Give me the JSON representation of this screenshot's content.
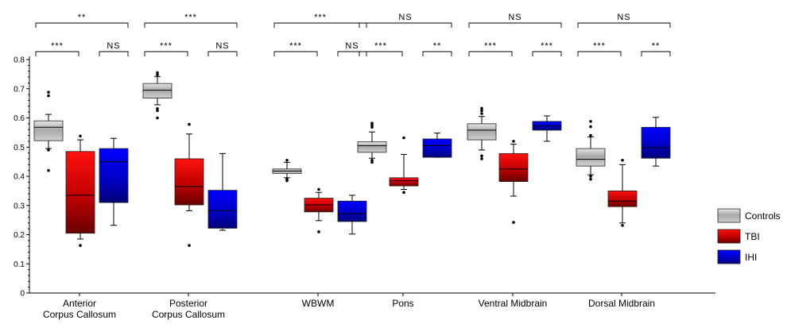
{
  "chart_data": {
    "type": "box",
    "title": "",
    "xlabel": "",
    "ylabel": "",
    "ylim": [
      0,
      0.8
    ],
    "yticks": [
      "0",
      "0.1",
      "0.2",
      "0.3",
      "0.4",
      "0.5",
      "0.6",
      "0.7",
      "0.8"
    ],
    "legend_position": "right",
    "grid": false,
    "categories": [
      [
        "Anterior",
        "Corpus Callosum"
      ],
      [
        "Posterior",
        "Corpus Callosum"
      ],
      [
        "WBWM"
      ],
      [
        "Pons"
      ],
      [
        "Ventral Midbrain"
      ],
      [
        "Dorsal Midbrain"
      ]
    ],
    "series": [
      {
        "name": "Controls",
        "color": "#b8b8b8",
        "boxes": [
          {
            "whisker_low": 0.495,
            "q1": 0.522,
            "median": 0.568,
            "q3": 0.59,
            "whisker_high": 0.612,
            "outliers": [
              0.42,
              0.49,
              0.676,
              0.688
            ]
          },
          {
            "whisker_low": 0.645,
            "q1": 0.668,
            "median": 0.695,
            "q3": 0.718,
            "whisker_high": 0.742,
            "outliers": [
              0.6,
              0.625,
              0.632,
              0.748,
              0.755
            ]
          },
          {
            "whisker_low": 0.395,
            "q1": 0.41,
            "median": 0.418,
            "q3": 0.425,
            "whisker_high": 0.448,
            "outliers": [
              0.385,
              0.39,
              0.455
            ]
          },
          {
            "whisker_low": 0.462,
            "q1": 0.482,
            "median": 0.505,
            "q3": 0.518,
            "whisker_high": 0.552,
            "outliers": [
              0.448,
              0.455,
              0.568,
              0.575,
              0.582
            ]
          },
          {
            "whisker_low": 0.49,
            "q1": 0.525,
            "median": 0.558,
            "q3": 0.58,
            "whisker_high": 0.605,
            "outliers": [
              0.46,
              0.47,
              0.615,
              0.625,
              0.633
            ]
          },
          {
            "whisker_low": 0.405,
            "q1": 0.435,
            "median": 0.458,
            "q3": 0.495,
            "whisker_high": 0.535,
            "outliers": [
              0.39,
              0.4,
              0.54,
              0.57,
              0.588
            ]
          }
        ]
      },
      {
        "name": "TBI",
        "color": "#e00000",
        "boxes": [
          {
            "whisker_low": 0.185,
            "q1": 0.205,
            "median": 0.335,
            "q3": 0.485,
            "whisker_high": 0.525,
            "outliers": [
              0.163,
              0.538
            ]
          },
          {
            "whisker_low": 0.282,
            "q1": 0.302,
            "median": 0.365,
            "q3": 0.46,
            "whisker_high": 0.545,
            "outliers": [
              0.163,
              0.578
            ]
          },
          {
            "whisker_low": 0.248,
            "q1": 0.278,
            "median": 0.302,
            "q3": 0.325,
            "whisker_high": 0.345,
            "outliers": [
              0.21,
              0.355
            ]
          },
          {
            "whisker_low": 0.355,
            "q1": 0.367,
            "median": 0.385,
            "q3": 0.395,
            "whisker_high": 0.475,
            "outliers": [
              0.345,
              0.532
            ]
          },
          {
            "whisker_low": 0.332,
            "q1": 0.382,
            "median": 0.425,
            "q3": 0.478,
            "whisker_high": 0.51,
            "outliers": [
              0.242,
              0.52
            ]
          },
          {
            "whisker_low": 0.24,
            "q1": 0.296,
            "median": 0.315,
            "q3": 0.35,
            "whisker_high": 0.44,
            "outliers": [
              0.232,
              0.455
            ]
          }
        ]
      },
      {
        "name": "IHI",
        "color": "#0000e0",
        "boxes": [
          {
            "whisker_low": 0.232,
            "q1": 0.31,
            "median": 0.45,
            "q3": 0.495,
            "whisker_high": 0.53,
            "outliers": []
          },
          {
            "whisker_low": 0.215,
            "q1": 0.222,
            "median": 0.282,
            "q3": 0.352,
            "whisker_high": 0.478,
            "outliers": []
          },
          {
            "whisker_low": 0.202,
            "q1": 0.245,
            "median": 0.272,
            "q3": 0.315,
            "whisker_high": 0.335,
            "outliers": []
          },
          {
            "whisker_low": 0.465,
            "q1": 0.465,
            "median": 0.505,
            "q3": 0.528,
            "whisker_high": 0.548,
            "outliers": []
          },
          {
            "whisker_low": 0.52,
            "q1": 0.558,
            "median": 0.572,
            "q3": 0.588,
            "whisker_high": 0.607,
            "outliers": []
          },
          {
            "whisker_low": 0.435,
            "q1": 0.462,
            "median": 0.498,
            "q3": 0.568,
            "whisker_high": 0.602,
            "outliers": []
          }
        ]
      }
    ],
    "significance": [
      {
        "top": "**",
        "left": "***",
        "right": "NS"
      },
      {
        "top": "***",
        "left": "***",
        "right": "NS"
      },
      {
        "top": "***",
        "left": "***",
        "right": "NS"
      },
      {
        "top": "NS",
        "left": "***",
        "right": "**"
      },
      {
        "top": "NS",
        "left": "***",
        "right": "***"
      },
      {
        "top": "NS",
        "left": "***",
        "right": "**"
      }
    ]
  }
}
